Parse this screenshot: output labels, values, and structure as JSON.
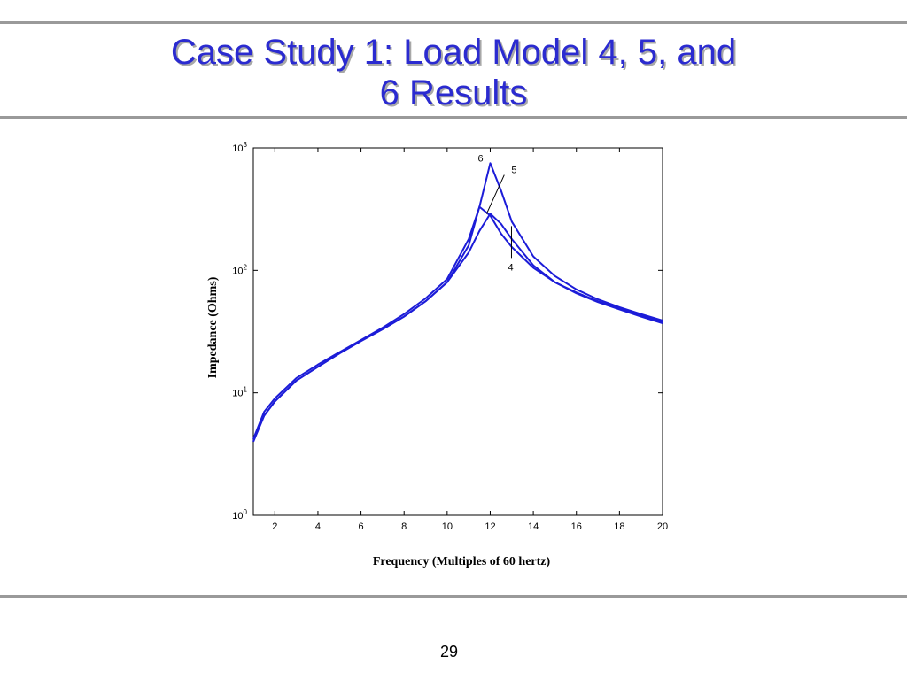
{
  "slide": {
    "title_line1": "Case Study 1:  Load Model 4, 5, and",
    "title_line2": "6 Results",
    "page_number": "29"
  },
  "colors": {
    "title": "#2b2bd0",
    "curve": "#1c1cd8",
    "rule": "#9a9a9a"
  },
  "chart_data": {
    "type": "line",
    "title": "",
    "xlabel": "Frequency (Multiples of 60 hertz)",
    "ylabel": "Impedance (Ohms)",
    "x_scale": "linear",
    "y_scale": "log",
    "xlim": [
      1,
      20
    ],
    "ylim": [
      1,
      1000
    ],
    "x_ticks": [
      2,
      4,
      6,
      8,
      10,
      12,
      14,
      16,
      18,
      20
    ],
    "x_tick_labels": [
      "2",
      "4",
      "6",
      "8",
      "10",
      "12",
      "14",
      "16",
      "18",
      "20"
    ],
    "y_ticks": [
      1,
      10,
      100,
      1000
    ],
    "y_tick_labels": [
      {
        "base": "10",
        "exp": "0"
      },
      {
        "base": "10",
        "exp": "1"
      },
      {
        "base": "10",
        "exp": "2"
      },
      {
        "base": "10",
        "exp": "3"
      }
    ],
    "grid": false,
    "legend": "none",
    "series": [
      {
        "label": "4",
        "x": [
          1,
          1.5,
          2,
          3,
          4,
          5,
          6,
          7,
          8,
          9,
          10,
          11,
          11.5,
          12,
          12.5,
          13,
          14,
          15,
          16,
          17,
          18,
          19,
          20
        ],
        "y": [
          4,
          6.5,
          8.5,
          12.6,
          16.3,
          21,
          26.5,
          33,
          42,
          56,
          80,
          140,
          210,
          290,
          240,
          180,
          110,
          80,
          65,
          55,
          48,
          42,
          37
        ]
      },
      {
        "label": "5",
        "x": [
          1,
          1.5,
          2,
          3,
          4,
          5,
          6,
          7,
          8,
          9,
          10,
          11,
          11.5,
          12,
          12.5,
          13,
          14,
          15,
          16,
          17,
          18,
          19,
          20
        ],
        "y": [
          4.2,
          7,
          9,
          13.2,
          17,
          21.5,
          27,
          34,
          44,
          59,
          85,
          180,
          330,
          280,
          200,
          155,
          105,
          80,
          66,
          56,
          49,
          43,
          38
        ]
      },
      {
        "label": "6",
        "x": [
          1,
          1.5,
          2,
          3,
          4,
          5,
          6,
          7,
          8,
          9,
          10,
          11,
          11.5,
          12,
          12.5,
          13,
          14,
          15,
          16,
          17,
          18,
          19,
          20
        ],
        "y": [
          4,
          6.5,
          8.5,
          12.6,
          16.3,
          21,
          26.5,
          33,
          42,
          56,
          80,
          160,
          330,
          750,
          450,
          250,
          130,
          90,
          70,
          58,
          50,
          44,
          39
        ]
      }
    ]
  }
}
